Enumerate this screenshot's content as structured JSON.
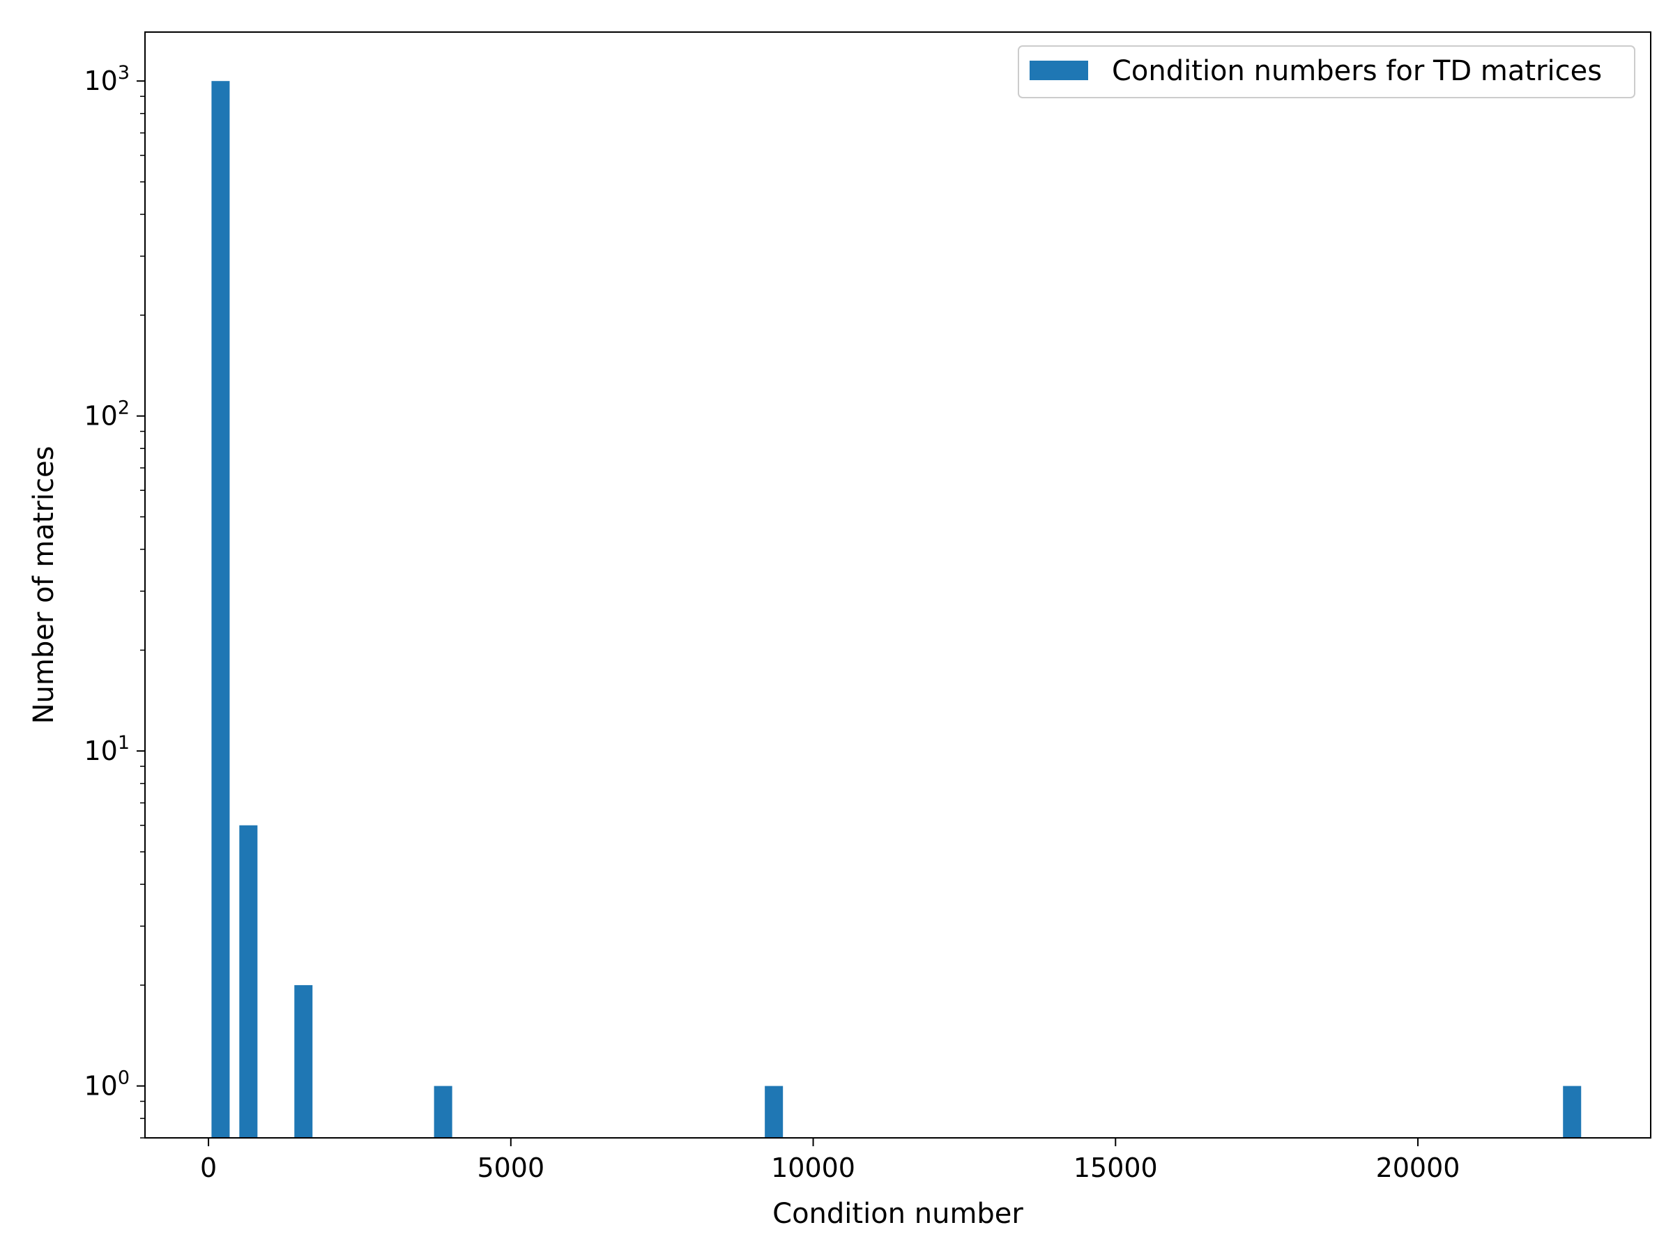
{
  "chart_data": {
    "type": "bar",
    "yscale": "log",
    "title": "",
    "xlabel": "Condition number",
    "ylabel": "Number of matrices",
    "xlim": [
      -1050,
      23850
    ],
    "ylim": [
      0.7,
      1400
    ],
    "bin_width": 300,
    "x_ticks": [
      0,
      5000,
      10000,
      15000,
      20000
    ],
    "x_tick_labels": [
      "0",
      "5000",
      "10000",
      "15000",
      "20000"
    ],
    "y_ticks": [
      {
        "value": 1,
        "base": "10",
        "exp": "0"
      },
      {
        "value": 10,
        "base": "10",
        "exp": "1"
      },
      {
        "value": 100,
        "base": "10",
        "exp": "2"
      },
      {
        "value": 1000,
        "base": "10",
        "exp": "3"
      }
    ],
    "series": [
      {
        "name": "Condition numbers for TD matrices",
        "color": "#1f77b4",
        "bins": [
          {
            "x": 200,
            "count": 1000
          },
          {
            "x": 660,
            "count": 6
          },
          {
            "x": 1570,
            "count": 2
          },
          {
            "x": 3880,
            "count": 1
          },
          {
            "x": 9350,
            "count": 1
          },
          {
            "x": 22550,
            "count": 1
          }
        ]
      }
    ],
    "legend": {
      "position": "top-right",
      "label": "Condition numbers for TD matrices"
    },
    "grid": false
  }
}
